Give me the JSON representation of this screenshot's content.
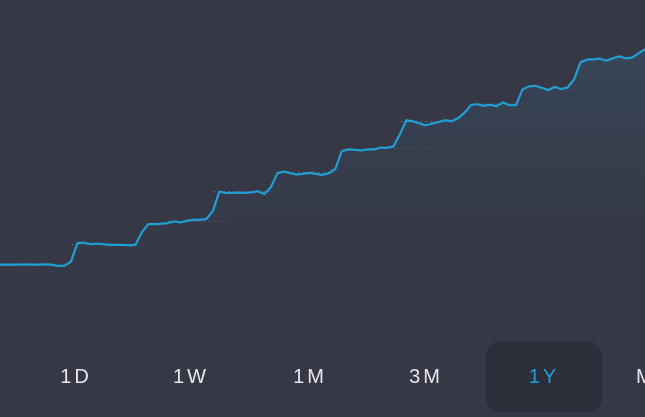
{
  "colors": {
    "background": "#363845",
    "line": "#1f9fd6",
    "reference_line": "#5f6f80",
    "label": "#e8e9ee",
    "active_label": "#1f9fd6",
    "active_pill": "#2c2e39"
  },
  "range_selector": {
    "selected": "1Y",
    "options": [
      {
        "label": "1D",
        "active": false
      },
      {
        "label": "1W",
        "active": false
      },
      {
        "label": "1M",
        "active": false
      },
      {
        "label": "3M",
        "active": false
      },
      {
        "label": "1Y",
        "active": true
      },
      {
        "label": "M",
        "active": false
      }
    ]
  },
  "chart_data": {
    "type": "area",
    "title": "",
    "xlabel": "",
    "ylabel": "",
    "grid": false,
    "legend": "none",
    "ylim": [
      0,
      100
    ],
    "series": [
      {
        "values": [
          21,
          21,
          21,
          21,
          21.1,
          21,
          21,
          21.1,
          21,
          20.6,
          20.7,
          21.9,
          27.4,
          27.6,
          27.1,
          27.3,
          27.1,
          26.9,
          26.9,
          26.9,
          26.8,
          26.9,
          30.7,
          33.1,
          33.1,
          33.2,
          33.4,
          33.9,
          33.6,
          34.1,
          34.4,
          34.4,
          34.6,
          37,
          42.8,
          42.4,
          42.4,
          42.5,
          42.4,
          42.6,
          42.9,
          42.1,
          44.1,
          48.3,
          48.8,
          48.3,
          47.9,
          48.1,
          48.4,
          48.1,
          47.8,
          48.3,
          49.6,
          54.9,
          55.4,
          55.3,
          55.1,
          55.4,
          55.4,
          55.9,
          55.9,
          56.3,
          59.9,
          64.1,
          63.8,
          63.2,
          62.6,
          63.1,
          63.6,
          64.1,
          63.8,
          64.7,
          66.3,
          68.6,
          68.9,
          68.4,
          68.7,
          68.3,
          69.4,
          68.6,
          68.6,
          73.3,
          74.2,
          74.4,
          73.8,
          73.1,
          74.1,
          73.4,
          73.9,
          76.3,
          81.4,
          82.2,
          82.3,
          82.5,
          81.9,
          82.6,
          83.2,
          82.6,
          82.8,
          84.1,
          85.3
        ]
      }
    ],
    "reference_lines": [
      20.7,
      27.0,
      33.9,
      42.8,
      48.6,
      55.7,
      63.7,
      68.9,
      73.5,
      81.9
    ]
  }
}
